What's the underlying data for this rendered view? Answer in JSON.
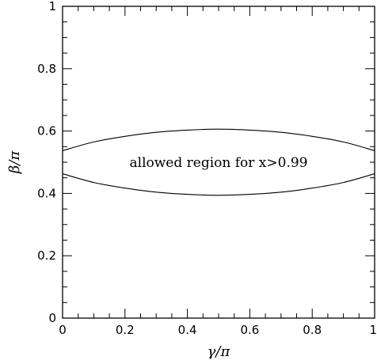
{
  "chart_data": {
    "type": "line",
    "xlabel": "γ/π",
    "ylabel": "β/π",
    "xlim": [
      0,
      1
    ],
    "ylim": [
      0,
      1
    ],
    "x_ticks": [
      "0",
      "0.2",
      "0.4",
      "0.6",
      "0.8",
      "1"
    ],
    "y_ticks": [
      "0",
      "0.2",
      "0.4",
      "0.6",
      "0.8",
      "1"
    ],
    "x_minor_step": 0.05,
    "y_minor_step": 0.05,
    "grid": false,
    "annotation": {
      "text": "allowed region for x>0.99",
      "x": 0.5,
      "y": 0.5
    },
    "series": [
      {
        "x": [
          0,
          0.1,
          0.2,
          0.3,
          0.4,
          0.5,
          0.6,
          0.7,
          0.8,
          0.9,
          1.0
        ],
        "y": [
          0.537,
          0.565,
          0.583,
          0.596,
          0.603,
          0.606,
          0.603,
          0.596,
          0.583,
          0.565,
          0.537
        ]
      },
      {
        "x": [
          0,
          0.1,
          0.2,
          0.3,
          0.4,
          0.5,
          0.6,
          0.7,
          0.8,
          0.9,
          1.0
        ],
        "y": [
          0.463,
          0.435,
          0.417,
          0.404,
          0.397,
          0.394,
          0.397,
          0.404,
          0.417,
          0.435,
          0.463
        ]
      }
    ]
  }
}
